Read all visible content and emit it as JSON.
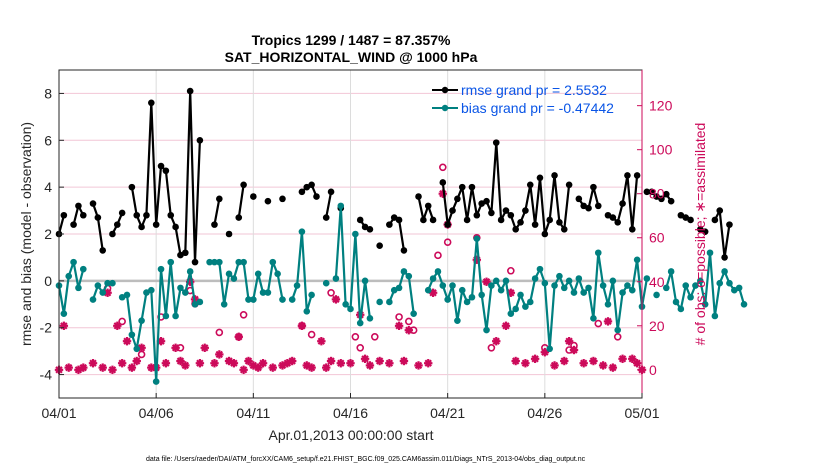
{
  "chart_data": {
    "type": "line",
    "title": "Tropics 1299 / 1487 = 87.357%",
    "subtitle": "SAT_HORIZONTAL_WIND @ 1000 hPa",
    "xlabel": "Apr.01,2013 00:00:00 start",
    "ylabel": "rmse and bias (model - observation)",
    "y2label": "# of obs: o=possible; ∗=assimilated",
    "xlim": [
      0,
      30
    ],
    "ylim": [
      -5,
      9
    ],
    "y2lim": [
      -12.8,
      136.2
    ],
    "x_ticks": [
      0,
      5,
      10,
      15,
      20,
      25,
      30
    ],
    "x_tick_labels": [
      "04/01",
      "04/06",
      "04/11",
      "04/16",
      "04/21",
      "04/26",
      "05/01"
    ],
    "y_ticks": [
      -4,
      -2,
      0,
      2,
      4,
      6,
      8
    ],
    "y_tick_labels": [
      "-4",
      "-2",
      "0",
      "2",
      "4",
      "6",
      "8"
    ],
    "y2_ticks": [
      0,
      20,
      40,
      60,
      80,
      100,
      120
    ],
    "y2_tick_labels": [
      "0",
      "20",
      "40",
      "60",
      "80",
      "100",
      "120"
    ],
    "grid": true,
    "zero_line": true,
    "legend_position": "top-right",
    "x_step_days": 0.25,
    "series": [
      {
        "name": "rmse grand pr = 2.5532",
        "color": "#000000",
        "axis": "left",
        "values": [
          2.0,
          2.8,
          null,
          2.4,
          3.2,
          2.8,
          null,
          3.3,
          2.7,
          1.3,
          null,
          2.0,
          2.4,
          2.9,
          null,
          4.0,
          2.8,
          2.3,
          2.8,
          7.6,
          2.4,
          4.9,
          4.7,
          2.8,
          2.3,
          1.1,
          1.2,
          8.1,
          0.8,
          6.0,
          null,
          null,
          2.4,
          3.5,
          null,
          2.0,
          null,
          2.7,
          4.1,
          null,
          3.6,
          null,
          null,
          3.4,
          null,
          null,
          3.5,
          null,
          null,
          null,
          3.8,
          4.0,
          4.1,
          3.6,
          null,
          2.7,
          3.8,
          null,
          3.1,
          null,
          null,
          null,
          2.6,
          2.3,
          2.2,
          null,
          1.5,
          null,
          2.4,
          2.7,
          2.6,
          1.3,
          null,
          null,
          3.6,
          2.6,
          3.2,
          2.6,
          null,
          4.2,
          2.4,
          3.0,
          3.5,
          4.0,
          2.6,
          4.0,
          2.8,
          3.3,
          3.4,
          2.9,
          5.9,
          2.6,
          3.0,
          2.8,
          2.2,
          2.5,
          3.0,
          4.1,
          2.4,
          4.4,
          2.0,
          2.6,
          4.5,
          2.5,
          2.2,
          4.1,
          null,
          3.5,
          3.2,
          3.1,
          4.0,
          3.2,
          null,
          2.8,
          2.7,
          2.5,
          3.3,
          4.5,
          2.2,
          4.5,
          null,
          3.8,
          3.8,
          3.6,
          3.5,
          3.7,
          3.4,
          null,
          2.8,
          2.7,
          2.6,
          null,
          2.2,
          2.1,
          null,
          2.6,
          3.0,
          1.0,
          2.4
        ],
        "x_override": null
      },
      {
        "name": "bias grand pr = -0.47442",
        "color": "#008080",
        "axis": "left",
        "values": [
          -0.2,
          -1.4,
          0.2,
          0.8,
          -0.3,
          0.5,
          null,
          -0.8,
          -0.2,
          -0.5,
          -0.1,
          -0.1,
          null,
          -0.7,
          -0.6,
          -2.3,
          -2.9,
          -1.7,
          -0.5,
          -0.4,
          -4.3,
          0.5,
          -1.5,
          0.8,
          -1.5,
          -0.3,
          -0.5,
          0.4,
          -1.0,
          -0.9,
          null,
          0.8,
          0.8,
          0.8,
          -1.0,
          0.3,
          0.1,
          0.8,
          0.8,
          -0.8,
          -0.8,
          0.3,
          -0.5,
          -0.5,
          0.8,
          0.3,
          -0.8,
          null,
          -0.8,
          -0.2,
          2.1,
          -1.3,
          -0.6,
          null,
          null,
          -0.1,
          null,
          0.1,
          3.2,
          -1.0,
          -1.2,
          2.0,
          -1.8,
          0.0,
          -1.6,
          null,
          -0.9,
          null,
          -0.9,
          -0.4,
          -0.3,
          0.4,
          0.2,
          -1.4,
          null,
          null,
          -0.4,
          0.1,
          0.4,
          -0.2,
          -0.8,
          -0.2,
          -1.7,
          -0.4,
          -0.9,
          -0.7,
          1.8,
          -0.6,
          -2.1,
          -0.2,
          0.0,
          -0.4,
          0.0,
          -1.4,
          -1.2,
          -0.6,
          -1.1,
          -0.9,
          0.1,
          0.5,
          -0.1,
          -2.9,
          -0.2,
          0.2,
          -0.3,
          0.0,
          -0.5,
          0.1,
          -0.5,
          -0.3,
          -1.6,
          1.2,
          -0.2,
          -1.0,
          0.0,
          -2.1,
          -0.5,
          -0.2,
          -0.4,
          0.9,
          -1.1,
          0.1,
          null,
          -0.6,
          null,
          -0.3,
          0.4,
          -0.9,
          -1.2,
          -0.2,
          -0.7,
          -0.2,
          0.0,
          -1.0,
          1.2,
          -1.5,
          -0.1,
          0.4,
          -0.1,
          -0.4,
          -0.3,
          -1.0
        ],
        "x_override": null
      },
      {
        "name": "possible obs (o)",
        "color": "#cc0a5a",
        "axis": "right",
        "marker": "circle-open",
        "points": [
          [
            2.5,
            37
          ],
          [
            3.25,
            22
          ],
          [
            4.25,
            7
          ],
          [
            5.25,
            24
          ],
          [
            6.25,
            10
          ],
          [
            6.75,
            36
          ],
          [
            7.0,
            30
          ],
          [
            8.25,
            17
          ],
          [
            9.25,
            15
          ],
          [
            9.5,
            25
          ],
          [
            12.5,
            20
          ],
          [
            13.0,
            16
          ],
          [
            14.0,
            35
          ],
          [
            15.25,
            15
          ],
          [
            15.5,
            10
          ],
          [
            16.25,
            15
          ],
          [
            17.5,
            24
          ],
          [
            18.0,
            22
          ],
          [
            18.25,
            18
          ],
          [
            19.5,
            52
          ],
          [
            19.75,
            92
          ],
          [
            20.0,
            58
          ],
          [
            21.5,
            60
          ],
          [
            22.25,
            10
          ],
          [
            23.25,
            45
          ],
          [
            25.0,
            10
          ],
          [
            26.25,
            9
          ],
          [
            26.5,
            11
          ],
          [
            27.75,
            21
          ],
          [
            28.75,
            15
          ]
        ]
      },
      {
        "name": "assimilated obs (∗)",
        "color": "#cc0a5a",
        "axis": "right",
        "marker": "asterisk",
        "points": [
          [
            0,
            0
          ],
          [
            0.25,
            20
          ],
          [
            0.5,
            1
          ],
          [
            1.0,
            0
          ],
          [
            1.25,
            1
          ],
          [
            1.75,
            3
          ],
          [
            2.25,
            1
          ],
          [
            2.5,
            35
          ],
          [
            2.75,
            0
          ],
          [
            3.0,
            20
          ],
          [
            3.25,
            3
          ],
          [
            3.5,
            13
          ],
          [
            3.75,
            1
          ],
          [
            4.0,
            4
          ],
          [
            4.25,
            10
          ],
          [
            4.75,
            1
          ],
          [
            5.0,
            1
          ],
          [
            5.25,
            13
          ],
          [
            5.5,
            3
          ],
          [
            6.0,
            10
          ],
          [
            6.25,
            4
          ],
          [
            6.5,
            2
          ],
          [
            6.75,
            40
          ],
          [
            7.0,
            32
          ],
          [
            7.25,
            3
          ],
          [
            7.5,
            10
          ],
          [
            8.0,
            3
          ],
          [
            8.25,
            7
          ],
          [
            8.75,
            4
          ],
          [
            9.0,
            3
          ],
          [
            9.25,
            15
          ],
          [
            9.5,
            0
          ],
          [
            9.75,
            4
          ],
          [
            10.0,
            2
          ],
          [
            10.25,
            1
          ],
          [
            10.5,
            3
          ],
          [
            11.0,
            1
          ],
          [
            11.5,
            2
          ],
          [
            11.75,
            3
          ],
          [
            12.0,
            4
          ],
          [
            12.5,
            20
          ],
          [
            12.75,
            2
          ],
          [
            13.0,
            1
          ],
          [
            13.5,
            13
          ],
          [
            13.75,
            1
          ],
          [
            14.0,
            4
          ],
          [
            14.25,
            32
          ],
          [
            14.5,
            3
          ],
          [
            15.0,
            3
          ],
          [
            15.5,
            25
          ],
          [
            15.75,
            5
          ],
          [
            16.0,
            2
          ],
          [
            16.5,
            4
          ],
          [
            17.0,
            3
          ],
          [
            17.5,
            20
          ],
          [
            17.75,
            4
          ],
          [
            18.0,
            18
          ],
          [
            18.5,
            2
          ],
          [
            19.0,
            3
          ],
          [
            19.25,
            35
          ],
          [
            19.75,
            80
          ],
          [
            20.0,
            66
          ],
          [
            21.5,
            50
          ],
          [
            22.0,
            40
          ],
          [
            22.5,
            13
          ],
          [
            23.0,
            20
          ],
          [
            23.25,
            35
          ],
          [
            23.5,
            4
          ],
          [
            24.0,
            3
          ],
          [
            24.5,
            5
          ],
          [
            25.0,
            8
          ],
          [
            25.5,
            2
          ],
          [
            26.0,
            4
          ],
          [
            26.25,
            13
          ],
          [
            26.5,
            9
          ],
          [
            27.0,
            3
          ],
          [
            27.5,
            4
          ],
          [
            28.0,
            2
          ],
          [
            28.25,
            22
          ],
          [
            28.5,
            1
          ],
          [
            29.0,
            5
          ],
          [
            29.5,
            5
          ],
          [
            29.75,
            3
          ],
          [
            30.0,
            0
          ]
        ]
      }
    ]
  },
  "footer": {
    "data_file": "data file: /Users/raeder/DAI/ATM_forcXX/CAM6_setup/f.e21.FHIST_BGC.f09_025.CAM6assim.011/Diags_NTrS_2013-04/obs_diag_output.nc"
  },
  "colors": {
    "rmse": "#000000",
    "bias": "#008080",
    "obs": "#cc0a5a",
    "legend_text": "#0a55e6",
    "zero_line": "#bdbdbd",
    "y_grid": "#f2c6d6",
    "x_grid": "#dcdcdc"
  }
}
